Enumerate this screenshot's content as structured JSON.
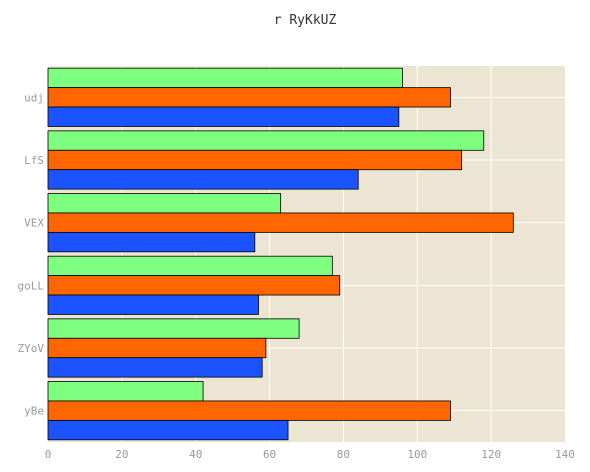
{
  "chart_data": {
    "type": "bar",
    "orientation": "horizontal",
    "title": "r RyKkUZ",
    "xlabel": "",
    "ylabel": "",
    "categories": [
      "udj",
      "LfS",
      "VEX",
      "goLL",
      "ZYoV",
      "yBe"
    ],
    "series": [
      {
        "color": "#7fff7f",
        "values": [
          96,
          118,
          63,
          77,
          68,
          42
        ]
      },
      {
        "color": "#ff6600",
        "values": [
          109,
          112,
          126,
          79,
          59,
          109
        ]
      },
      {
        "color": "#1a53ff",
        "values": [
          95,
          84,
          56,
          57,
          58,
          65
        ]
      }
    ],
    "xlim": [
      0,
      140
    ],
    "xticks": [
      "0",
      "20",
      "40",
      "60",
      "80",
      "100",
      "120",
      "140"
    ],
    "grid": true,
    "legend": "none",
    "background_color": "#ede5d3"
  }
}
